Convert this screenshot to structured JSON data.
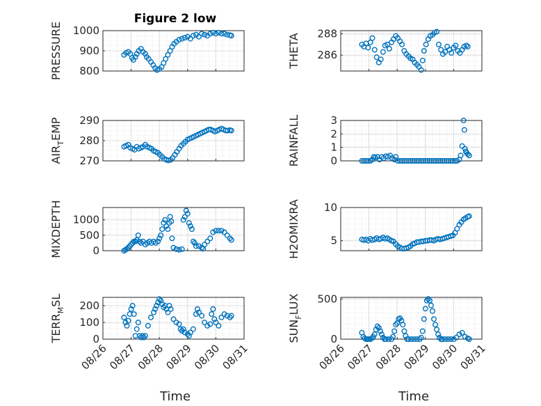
{
  "figure": {
    "title": "Figure 2 low",
    "xlabel": "Time"
  },
  "chart_data": [
    {
      "type": "scatter",
      "title": "Figure 2 low",
      "ylabel_main": "PRESSURE",
      "ylabel_sub": "",
      "ylabel_tail": "",
      "ylim": [
        800,
        1000
      ],
      "yticks": [
        "800",
        "900",
        "1000"
      ],
      "xlim": [
        0,
        5
      ],
      "xticks": [
        "08/26",
        "08/27",
        "08/28",
        "08/29",
        "08/30",
        "08/31"
      ],
      "grid": true,
      "color": "#0072BD",
      "x": [
        0.75,
        0.82,
        0.9,
        0.97,
        1.03,
        1.08,
        1.15,
        1.2,
        1.27,
        1.35,
        1.42,
        1.5,
        1.55,
        1.62,
        1.7,
        1.78,
        1.85,
        1.92,
        2.0,
        2.08,
        2.15,
        2.22,
        2.3,
        2.38,
        2.45,
        2.52,
        2.6,
        2.7,
        2.8,
        2.9,
        3.0,
        3.1,
        3.2,
        3.3,
        3.4,
        3.5,
        3.6,
        3.7,
        3.8,
        3.9,
        4.0,
        4.1,
        4.2,
        4.3,
        4.4,
        4.5,
        4.55
      ],
      "y": [
        880,
        890,
        895,
        885,
        865,
        855,
        870,
        885,
        900,
        910,
        895,
        885,
        870,
        860,
        845,
        830,
        815,
        805,
        810,
        820,
        840,
        860,
        880,
        900,
        920,
        935,
        945,
        955,
        960,
        965,
        970,
        960,
        975,
        980,
        970,
        985,
        980,
        975,
        985,
        990,
        985,
        990,
        985,
        985,
        980,
        978,
        975
      ]
    },
    {
      "type": "scatter",
      "title": "",
      "ylabel_main": "THETA",
      "ylabel_sub": "",
      "ylabel_tail": "",
      "ylim": [
        284.5,
        288.3
      ],
      "yticks": [
        "286",
        "288"
      ],
      "xlim": [
        0,
        5
      ],
      "xticks": [
        "08/26",
        "08/27",
        "08/28",
        "08/29",
        "08/30",
        "08/31"
      ],
      "grid": true,
      "color": "#0072BD",
      "x": [
        0.75,
        0.82,
        0.9,
        0.97,
        1.05,
        1.12,
        1.2,
        1.27,
        1.35,
        1.42,
        1.5,
        1.57,
        1.65,
        1.72,
        1.8,
        1.87,
        1.95,
        2.02,
        2.1,
        2.17,
        2.25,
        2.32,
        2.4,
        2.47,
        2.55,
        2.62,
        2.7,
        2.77,
        2.85,
        2.9,
        2.95,
        3.02,
        3.1,
        3.17,
        3.25,
        3.32,
        3.4,
        3.47,
        3.55,
        3.62,
        3.7,
        3.77,
        3.85,
        3.92,
        4.0,
        4.07,
        4.15,
        4.22,
        4.3,
        4.37,
        4.45,
        4.5
      ],
      "y": [
        287.0,
        286.8,
        287.1,
        286.7,
        287.2,
        287.6,
        286.5,
        285.8,
        285.3,
        285.6,
        286.3,
        286.9,
        287.0,
        286.6,
        287.2,
        287.5,
        287.8,
        287.6,
        287.3,
        287.0,
        286.4,
        286.1,
        285.9,
        285.7,
        285.6,
        285.3,
        285.1,
        284.9,
        284.6,
        285.5,
        286.4,
        287.0,
        287.5,
        287.8,
        287.9,
        288.1,
        288.2,
        287.0,
        286.5,
        286.1,
        286.3,
        286.8,
        286.5,
        286.2,
        286.7,
        286.9,
        286.4,
        286.2,
        286.5,
        286.8,
        286.9,
        286.8
      ]
    },
    {
      "type": "scatter",
      "title": "",
      "ylabel_main": "AIR",
      "ylabel_sub": "T",
      "ylabel_tail": "EMP",
      "ylim": [
        270,
        290
      ],
      "yticks": [
        "270",
        "280",
        "290"
      ],
      "xlim": [
        0,
        5
      ],
      "xticks": [
        "08/26",
        "08/27",
        "08/28",
        "08/29",
        "08/30",
        "08/31"
      ],
      "grid": true,
      "color": "#0072BD",
      "x": [
        0.75,
        0.82,
        0.9,
        0.97,
        1.05,
        1.12,
        1.2,
        1.27,
        1.35,
        1.42,
        1.5,
        1.57,
        1.65,
        1.72,
        1.8,
        1.87,
        1.95,
        2.02,
        2.1,
        2.17,
        2.25,
        2.32,
        2.4,
        2.47,
        2.55,
        2.62,
        2.7,
        2.77,
        2.85,
        2.92,
        3.0,
        3.07,
        3.15,
        3.22,
        3.3,
        3.37,
        3.45,
        3.52,
        3.6,
        3.67,
        3.75,
        3.82,
        3.9,
        3.97,
        4.05,
        4.12,
        4.2,
        4.27,
        4.35,
        4.42,
        4.5,
        4.55
      ],
      "y": [
        277,
        277.5,
        278,
        276.5,
        276,
        275.5,
        277,
        276,
        276.5,
        277,
        278,
        277,
        276.5,
        276,
        275,
        274.5,
        274,
        273,
        272,
        271,
        270.5,
        270.2,
        270.5,
        271.5,
        273,
        274.5,
        276,
        277.5,
        278.5,
        279.5,
        280.5,
        281,
        281.5,
        282,
        282.5,
        283,
        283.5,
        284,
        284.5,
        285,
        285.5,
        285.5,
        285,
        284.5,
        285,
        285.5,
        286,
        285.5,
        285,
        285,
        285.2,
        285
      ]
    },
    {
      "type": "scatter",
      "title": "",
      "ylabel_main": "RAINFALL",
      "ylabel_sub": "",
      "ylabel_tail": "",
      "ylim": [
        0,
        3
      ],
      "yticks": [
        "0",
        "1",
        "2",
        "3"
      ],
      "xlim": [
        0,
        5
      ],
      "xticks": [
        "08/26",
        "08/27",
        "08/28",
        "08/29",
        "08/30",
        "08/31"
      ],
      "grid": true,
      "color": "#0072BD",
      "x": [
        0.75,
        0.82,
        0.9,
        0.97,
        1.05,
        1.12,
        1.17,
        1.22,
        1.3,
        1.37,
        1.45,
        1.52,
        1.6,
        1.67,
        1.75,
        1.82,
        1.9,
        1.95,
        2.02,
        2.1,
        2.17,
        2.25,
        2.32,
        2.4,
        2.47,
        2.55,
        2.62,
        2.7,
        2.77,
        2.85,
        2.92,
        3.0,
        3.07,
        3.15,
        3.22,
        3.3,
        3.37,
        3.45,
        3.52,
        3.6,
        3.67,
        3.75,
        3.82,
        3.9,
        3.97,
        4.05,
        4.12,
        4.2,
        4.25,
        4.3,
        4.35,
        4.38,
        4.4,
        4.43,
        4.46,
        4.5,
        4.55
      ],
      "y": [
        0,
        0,
        0,
        0,
        0,
        0.1,
        0.3,
        0.25,
        0.3,
        0.1,
        0.3,
        0.2,
        0.35,
        0.3,
        0.4,
        0.2,
        0.1,
        0.3,
        0,
        0,
        0,
        0,
        0,
        0,
        0,
        0,
        0,
        0,
        0,
        0,
        0,
        0,
        0,
        0,
        0,
        0,
        0,
        0,
        0,
        0,
        0,
        0,
        0,
        0,
        0,
        0,
        0,
        0.1,
        0.4,
        1.1,
        3.0,
        2.3,
        0.9,
        0.7,
        0.6,
        0.5,
        0.4
      ]
    },
    {
      "type": "scatter",
      "title": "",
      "ylabel_main": "MIXDEPTH",
      "ylabel_sub": "",
      "ylabel_tail": "",
      "ylim": [
        0,
        1400
      ],
      "yticks": [
        "0",
        "500",
        "1000"
      ],
      "xlim": [
        0,
        5
      ],
      "xticks": [
        "08/26",
        "08/27",
        "08/28",
        "08/29",
        "08/30",
        "08/31"
      ],
      "grid": true,
      "color": "#0072BD",
      "x": [
        0.75,
        0.8,
        0.85,
        0.9,
        0.95,
        1.0,
        1.05,
        1.1,
        1.15,
        1.2,
        1.25,
        1.3,
        1.35,
        1.42,
        1.5,
        1.57,
        1.65,
        1.72,
        1.8,
        1.87,
        1.95,
        2.0,
        2.05,
        2.1,
        2.15,
        2.2,
        2.25,
        2.3,
        2.35,
        2.38,
        2.42,
        2.45,
        2.5,
        2.6,
        2.7,
        2.8,
        2.85,
        2.9,
        2.95,
        3.0,
        3.05,
        3.1,
        3.15,
        3.2,
        3.25,
        3.3,
        3.4,
        3.5,
        3.55,
        3.6,
        3.7,
        3.8,
        3.9,
        4.0,
        4.1,
        4.2,
        4.3,
        4.4,
        4.5,
        4.55
      ],
      "y": [
        0,
        30,
        60,
        100,
        150,
        200,
        250,
        300,
        300,
        350,
        500,
        300,
        250,
        300,
        200,
        250,
        300,
        250,
        300,
        250,
        300,
        400,
        500,
        700,
        900,
        1000,
        800,
        700,
        900,
        1100,
        950,
        400,
        100,
        50,
        30,
        50,
        1000,
        1100,
        1300,
        1200,
        900,
        800,
        700,
        300,
        250,
        150,
        150,
        100,
        60,
        200,
        300,
        400,
        600,
        650,
        650,
        650,
        600,
        500,
        400,
        350
      ]
    },
    {
      "type": "scatter",
      "title": "",
      "ylabel_main": "H2OMIXRA",
      "ylabel_sub": "",
      "ylabel_tail": "",
      "ylim": [
        3.5,
        10
      ],
      "yticks": [
        "5",
        "10"
      ],
      "xlim": [
        0,
        5
      ],
      "xticks": [
        "08/26",
        "08/27",
        "08/28",
        "08/29",
        "08/30",
        "08/31"
      ],
      "grid": true,
      "color": "#0072BD",
      "x": [
        0.75,
        0.82,
        0.9,
        0.97,
        1.05,
        1.12,
        1.2,
        1.27,
        1.35,
        1.42,
        1.5,
        1.57,
        1.65,
        1.72,
        1.8,
        1.87,
        1.95,
        2.02,
        2.1,
        2.17,
        2.25,
        2.32,
        2.4,
        2.47,
        2.55,
        2.62,
        2.7,
        2.77,
        2.85,
        2.92,
        3.0,
        3.07,
        3.15,
        3.22,
        3.3,
        3.37,
        3.45,
        3.52,
        3.6,
        3.67,
        3.75,
        3.82,
        3.9,
        3.97,
        4.05,
        4.12,
        4.2,
        4.27,
        4.35,
        4.42,
        4.5,
        4.55
      ],
      "y": [
        5.2,
        5.1,
        5.2,
        5.0,
        5.3,
        5.1,
        5.2,
        5.4,
        5.2,
        5.3,
        5.5,
        5.3,
        5.4,
        5.2,
        5.0,
        4.9,
        4.5,
        4.2,
        4.0,
        3.8,
        3.8,
        3.9,
        4.0,
        4.2,
        4.5,
        4.6,
        4.8,
        4.8,
        4.9,
        4.9,
        5.0,
        5.0,
        5.1,
        5.1,
        5.0,
        5.2,
        5.3,
        5.2,
        5.3,
        5.4,
        5.5,
        5.6,
        5.7,
        5.8,
        6.2,
        6.8,
        7.4,
        7.8,
        8.2,
        8.4,
        8.6,
        8.7
      ]
    },
    {
      "type": "scatter",
      "title": "",
      "ylabel_main": "TERR",
      "ylabel_sub": "M",
      "ylabel_tail": "SL",
      "ylim": [
        0,
        250
      ],
      "yticks": [
        "0",
        "100",
        "200"
      ],
      "xlim": [
        0,
        5
      ],
      "xticks": [
        "08/26",
        "08/27",
        "08/28",
        "08/29",
        "08/30",
        "08/31"
      ],
      "grid": true,
      "color": "#0072BD",
      "x": [
        0.75,
        0.8,
        0.85,
        0.9,
        0.95,
        1.0,
        1.05,
        1.1,
        1.15,
        1.2,
        1.25,
        1.3,
        1.35,
        1.4,
        1.45,
        1.5,
        1.6,
        1.7,
        1.8,
        1.85,
        1.9,
        1.95,
        2.0,
        2.05,
        2.1,
        2.15,
        2.2,
        2.25,
        2.3,
        2.35,
        2.4,
        2.5,
        2.6,
        2.7,
        2.75,
        2.8,
        2.85,
        2.9,
        3.0,
        3.05,
        3.1,
        3.2,
        3.3,
        3.35,
        3.4,
        3.5,
        3.6,
        3.7,
        3.8,
        3.85,
        3.9,
        3.95,
        4.0,
        4.1,
        4.2,
        4.3,
        4.4,
        4.5,
        4.55
      ],
      "y": [
        130,
        100,
        80,
        110,
        150,
        180,
        200,
        150,
        20,
        60,
        100,
        20,
        10,
        20,
        10,
        20,
        80,
        130,
        160,
        180,
        200,
        220,
        240,
        230,
        210,
        190,
        200,
        180,
        160,
        200,
        180,
        120,
        100,
        90,
        60,
        50,
        60,
        40,
        30,
        20,
        40,
        60,
        150,
        180,
        160,
        140,
        100,
        80,
        90,
        150,
        180,
        120,
        100,
        80,
        130,
        150,
        140,
        130,
        140
      ]
    },
    {
      "type": "scatter",
      "title": "",
      "ylabel_main": "SUN",
      "ylabel_sub": "F",
      "ylabel_tail": "LUX",
      "ylim": [
        0,
        520
      ],
      "yticks": [
        "0",
        "500"
      ],
      "xlim": [
        0,
        5
      ],
      "xticks": [
        "08/26",
        "08/27",
        "08/28",
        "08/29",
        "08/30",
        "08/31"
      ],
      "grid": true,
      "color": "#0072BD",
      "x": [
        0.75,
        0.8,
        0.85,
        0.9,
        0.95,
        1.0,
        1.05,
        1.1,
        1.15,
        1.2,
        1.25,
        1.3,
        1.35,
        1.4,
        1.45,
        1.5,
        1.55,
        1.6,
        1.7,
        1.8,
        1.85,
        1.9,
        1.95,
        2.0,
        2.05,
        2.1,
        2.15,
        2.2,
        2.25,
        2.3,
        2.35,
        2.4,
        2.5,
        2.6,
        2.7,
        2.8,
        2.85,
        2.9,
        2.95,
        3.0,
        3.05,
        3.1,
        3.15,
        3.2,
        3.25,
        3.3,
        3.35,
        3.4,
        3.45,
        3.5,
        3.55,
        3.6,
        3.7,
        3.8,
        3.9,
        4.0,
        4.1,
        4.2,
        4.3,
        4.4,
        4.5,
        4.55
      ],
      "y": [
        80,
        30,
        10,
        0,
        0,
        0,
        0,
        10,
        30,
        60,
        120,
        160,
        140,
        100,
        60,
        20,
        0,
        0,
        0,
        0,
        30,
        100,
        180,
        200,
        250,
        260,
        230,
        180,
        100,
        40,
        0,
        0,
        0,
        0,
        0,
        0,
        20,
        100,
        250,
        380,
        480,
        500,
        480,
        420,
        350,
        250,
        180,
        120,
        60,
        20,
        0,
        0,
        0,
        0,
        0,
        0,
        20,
        60,
        80,
        30,
        10,
        0
      ]
    }
  ]
}
